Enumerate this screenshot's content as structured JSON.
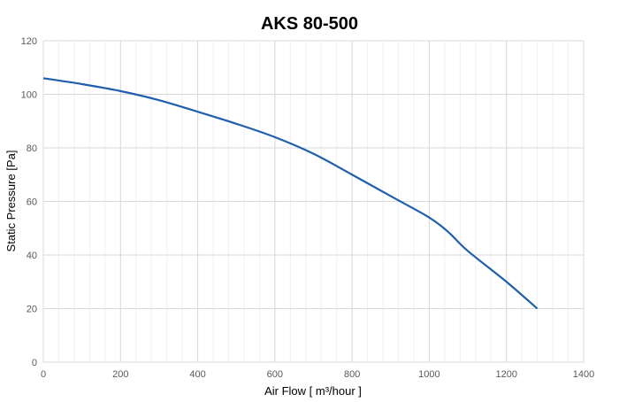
{
  "chart_data": {
    "type": "line",
    "title": "AKS 80-500",
    "xlabel": "Air Flow [ m³/hour ]",
    "ylabel": "Static Pressure [Pa]",
    "xlim": [
      0,
      1400
    ],
    "ylim": [
      0,
      120
    ],
    "x_ticks": [
      0,
      200,
      400,
      600,
      800,
      1000,
      1200,
      1400
    ],
    "y_ticks": [
      0,
      20,
      40,
      60,
      80,
      100,
      120
    ],
    "x_minor_step": 40,
    "grid": true,
    "series": [
      {
        "color": "#1f5fb0",
        "x": [
          0,
          100,
          200,
          300,
          400,
          500,
          600,
          700,
          800,
          900,
          1000,
          1050,
          1100,
          1200,
          1280
        ],
        "y": [
          106,
          103.8,
          101.2,
          97.8,
          93.5,
          89,
          84,
          77.8,
          70,
          62,
          54,
          48.5,
          41.5,
          30,
          20
        ]
      }
    ]
  }
}
